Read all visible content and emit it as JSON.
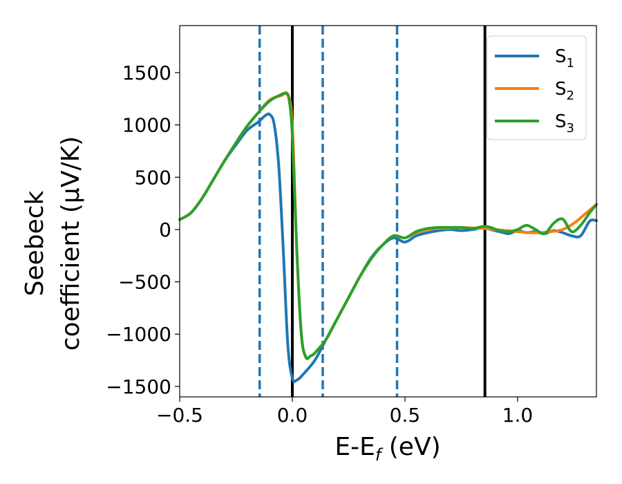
{
  "chart_data": {
    "type": "line",
    "xlabel": "E-E",
    "xlabel_sub": "f",
    "xlabel_unit": " (eV)",
    "ylabel_line1": "Seebeck",
    "ylabel_line2": "coefficient  (μV/K)",
    "xlim": [
      -0.5,
      1.35
    ],
    "ylim": [
      -1600,
      1950
    ],
    "xticks": [
      {
        "value": -0.5,
        "label": "−0.5"
      },
      {
        "value": 0.0,
        "label": "0.0"
      },
      {
        "value": 0.5,
        "label": "0.5"
      },
      {
        "value": 1.0,
        "label": "1.0"
      }
    ],
    "yticks": [
      {
        "value": 1500,
        "label": "1500"
      },
      {
        "value": 1000,
        "label": "1000"
      },
      {
        "value": 500,
        "label": "500"
      },
      {
        "value": 0,
        "label": "0"
      },
      {
        "value": -500,
        "label": "−500"
      },
      {
        "value": -1000,
        "label": "−1000"
      },
      {
        "value": -1500,
        "label": "−1500"
      }
    ],
    "vlines": [
      {
        "x": -0.145,
        "style": "dashed",
        "color": "#1f77b4"
      },
      {
        "x": 0.0,
        "style": "solid",
        "color": "#000000"
      },
      {
        "x": 0.135,
        "style": "dashed",
        "color": "#1f77b4"
      },
      {
        "x": 0.465,
        "style": "dashed",
        "color": "#1f77b4"
      },
      {
        "x": 0.855,
        "style": "solid",
        "color": "#000000"
      }
    ],
    "legend": {
      "placement": "top-right"
    },
    "series": [
      {
        "name": "S",
        "sub": "1",
        "color": "#1f77b4",
        "x": [
          -0.5,
          -0.45,
          -0.4,
          -0.35,
          -0.3,
          -0.25,
          -0.2,
          -0.15,
          -0.12,
          -0.1,
          -0.08,
          -0.06,
          -0.04,
          -0.02,
          0.0,
          0.02,
          0.05,
          0.1,
          0.15,
          0.2,
          0.25,
          0.3,
          0.35,
          0.4,
          0.45,
          0.5,
          0.55,
          0.6,
          0.65,
          0.7,
          0.75,
          0.8,
          0.85,
          0.88,
          0.92,
          0.96,
          1.0,
          1.04,
          1.08,
          1.12,
          1.16,
          1.2,
          1.24,
          1.28,
          1.32,
          1.35
        ],
        "y": [
          95,
          160,
          300,
          480,
          660,
          810,
          950,
          1030,
          1090,
          1100,
          1000,
          600,
          -200,
          -1100,
          -1420,
          -1440,
          -1380,
          -1250,
          -1050,
          -850,
          -650,
          -450,
          -270,
          -150,
          -80,
          -120,
          -60,
          -30,
          -10,
          0,
          -10,
          0,
          20,
          0,
          -20,
          -40,
          -10,
          -30,
          -20,
          -40,
          -10,
          -30,
          -60,
          -60,
          80,
          85
        ]
      },
      {
        "name": "S",
        "sub": "2",
        "color": "#ff7f0e",
        "x": [
          -0.5,
          -0.45,
          -0.4,
          -0.35,
          -0.3,
          -0.25,
          -0.2,
          -0.15,
          -0.1,
          -0.05,
          -0.02,
          0.0,
          0.02,
          0.04,
          0.06,
          0.08,
          0.1,
          0.15,
          0.2,
          0.25,
          0.3,
          0.35,
          0.4,
          0.45,
          0.5,
          0.55,
          0.6,
          0.65,
          0.7,
          0.75,
          0.8,
          0.85,
          0.9,
          0.95,
          1.0,
          1.05,
          1.1,
          1.15,
          1.2,
          1.25,
          1.3,
          1.35
        ],
        "y": [
          95,
          160,
          300,
          480,
          660,
          830,
          990,
          1120,
          1240,
          1280,
          1290,
          1000,
          -200,
          -1000,
          -1220,
          -1210,
          -1180,
          -1050,
          -850,
          -650,
          -450,
          -280,
          -150,
          -60,
          -80,
          -30,
          0,
          10,
          15,
          20,
          15,
          10,
          0,
          -10,
          -20,
          -30,
          -30,
          -20,
          0,
          60,
          150,
          240
        ]
      },
      {
        "name": "S",
        "sub": "3",
        "color": "#2ca02c",
        "x": [
          -0.5,
          -0.45,
          -0.4,
          -0.35,
          -0.3,
          -0.25,
          -0.2,
          -0.15,
          -0.1,
          -0.05,
          -0.03,
          -0.015,
          0.0,
          0.02,
          0.04,
          0.06,
          0.08,
          0.1,
          0.15,
          0.2,
          0.25,
          0.3,
          0.35,
          0.4,
          0.45,
          0.5,
          0.55,
          0.6,
          0.65,
          0.7,
          0.75,
          0.8,
          0.85,
          0.88,
          0.92,
          0.96,
          1.0,
          1.04,
          1.08,
          1.12,
          1.16,
          1.2,
          1.24,
          1.28,
          1.32,
          1.35
        ],
        "y": [
          95,
          160,
          300,
          480,
          660,
          830,
          990,
          1120,
          1230,
          1290,
          1300,
          1250,
          900,
          -200,
          -1000,
          -1220,
          -1210,
          -1180,
          -1050,
          -850,
          -650,
          -450,
          -280,
          -150,
          -60,
          -80,
          -20,
          10,
          20,
          20,
          20,
          10,
          30,
          20,
          -10,
          -20,
          0,
          40,
          0,
          -40,
          60,
          100,
          -20,
          40,
          160,
          240
        ]
      }
    ]
  }
}
